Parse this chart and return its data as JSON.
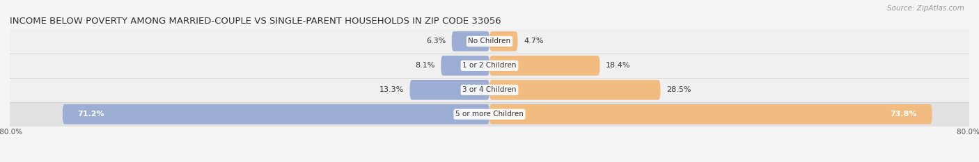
{
  "title": "INCOME BELOW POVERTY AMONG MARRIED-COUPLE VS SINGLE-PARENT HOUSEHOLDS IN ZIP CODE 33056",
  "source": "Source: ZipAtlas.com",
  "categories": [
    "No Children",
    "1 or 2 Children",
    "3 or 4 Children",
    "5 or more Children"
  ],
  "married_values": [
    6.3,
    8.1,
    13.3,
    71.2
  ],
  "single_values": [
    4.7,
    18.4,
    28.5,
    73.8
  ],
  "married_color": "#9daed4",
  "single_color": "#f2bc80",
  "row_bg_light": "#f0f0f0",
  "row_bg_dark": "#e2e2e2",
  "row_border": "#cccccc",
  "xlim_left": -80.0,
  "xlim_right": 80.0,
  "title_fontsize": 9.5,
  "source_fontsize": 7.5,
  "label_fontsize": 8,
  "category_fontsize": 7.5,
  "tick_fontsize": 7.5,
  "background_color": "#f5f5f5"
}
